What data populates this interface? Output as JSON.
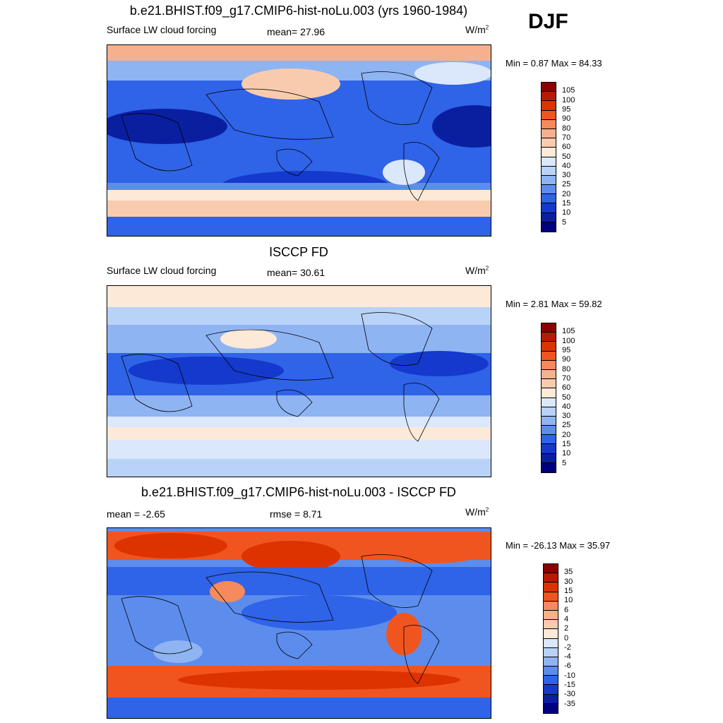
{
  "season": "DJF",
  "panels": [
    {
      "id": "model",
      "title": "b.e21.BHIST.f09_g17.CMIP6-hist-noLu.003 (yrs 1960-1984)",
      "left_label": "Surface LW cloud forcing",
      "center_label": "mean=  27.96",
      "units": "W/m",
      "units_sup": "2",
      "minmax": "Min =   0.87 Max =  84.33",
      "colorbar": [
        "105",
        "100",
        "95",
        "90",
        "80",
        "70",
        "60",
        "50",
        "40",
        "30",
        "25",
        "20",
        "15",
        "10",
        "5"
      ],
      "palette": [
        "#8b0000",
        "#b81a00",
        "#dd3300",
        "#f0551f",
        "#f58a5c",
        "#f7b08e",
        "#f9cbae",
        "#fde9d8",
        "#dbe8fb",
        "#b9d2f8",
        "#8fb4f2",
        "#5c8ded",
        "#2f63e8",
        "#1439cc",
        "#0a1fa0",
        "#00007f"
      ]
    },
    {
      "id": "obs",
      "title": "ISCCP FD",
      "left_label": "Surface LW cloud forcing",
      "center_label": "mean=  30.61",
      "units": "W/m",
      "units_sup": "2",
      "minmax": "Min =   2.81 Max =  59.82",
      "colorbar": [
        "105",
        "100",
        "95",
        "90",
        "80",
        "70",
        "60",
        "50",
        "40",
        "30",
        "25",
        "20",
        "15",
        "10",
        "5"
      ],
      "palette": [
        "#8b0000",
        "#b81a00",
        "#dd3300",
        "#f0551f",
        "#f58a5c",
        "#f7b08e",
        "#f9cbae",
        "#fde9d8",
        "#dbe8fb",
        "#b9d2f8",
        "#8fb4f2",
        "#5c8ded",
        "#2f63e8",
        "#1439cc",
        "#0a1fa0",
        "#00007f"
      ]
    },
    {
      "id": "diff",
      "title": "b.e21.BHIST.f09_g17.CMIP6-hist-noLu.003 - ISCCP FD",
      "left_label": "mean =  -2.65",
      "center_label": "rmse =    8.71",
      "units": "W/m",
      "units_sup": "2",
      "minmax": "Min = -26.13 Max =  35.97",
      "colorbar": [
        "35",
        "30",
        "15",
        "10",
        "6",
        "4",
        "2",
        "0",
        "-2",
        "-4",
        "-6",
        "-10",
        "-15",
        "-30",
        "-35"
      ],
      "palette": [
        "#8b0000",
        "#b81a00",
        "#dd3300",
        "#f0551f",
        "#f58a5c",
        "#f7b08e",
        "#f9cbae",
        "#fde9d8",
        "#dbe8fb",
        "#b9d2f8",
        "#8fb4f2",
        "#5c8ded",
        "#2f63e8",
        "#1439cc",
        "#0a1fa0",
        "#00007f"
      ]
    }
  ]
}
